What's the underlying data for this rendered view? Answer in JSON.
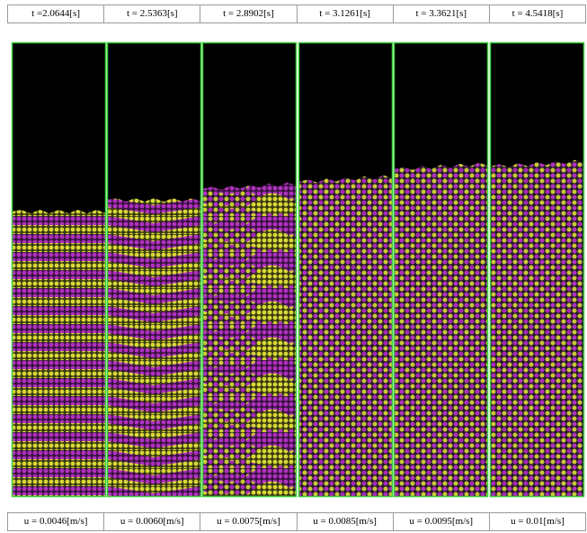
{
  "top_labels": [
    "t =2.0644[s]",
    "t = 2.5363[s]",
    "t = 2.8902[s]",
    "t = 3.1261[s]",
    "t = 3.3621[s]",
    "t = 4.5418[s]"
  ],
  "bottom_labels": [
    "u = 0.0046[m/s]",
    "u = 0.0060[m/s]",
    "u = 0.0075[m/s]",
    "u = 0.0085[m/s]",
    "u = 0.0095[m/s]",
    "u = 0.01[m/s]"
  ]
}
